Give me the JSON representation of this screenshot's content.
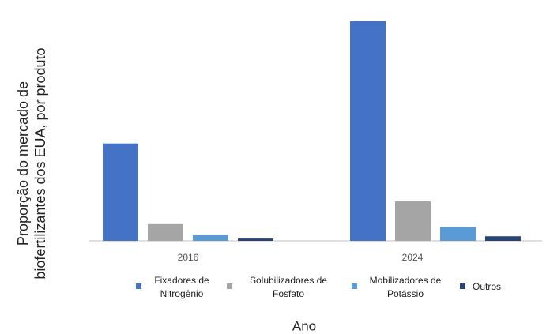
{
  "chart_data": {
    "type": "bar",
    "ylabel": "Proporção do mercado de biofertilizantes dos EUA, por produto",
    "xlabel": "Ano",
    "categories": [
      "2016",
      "2024"
    ],
    "series": [
      {
        "name": "Fixadores de Nitrogênio",
        "color": "#4472c4",
        "values": [
          128,
          289
        ]
      },
      {
        "name": "Solubilizadores de Fosfato",
        "color": "#a5a5a5",
        "values": [
          22,
          52
        ]
      },
      {
        "name": "Mobilizadores de Potássio",
        "color": "#5b9bd5",
        "values": [
          8,
          18
        ]
      },
      {
        "name": "Outros",
        "color": "#264478",
        "values": [
          3,
          6
        ]
      }
    ],
    "ylim": [
      0,
      300
    ],
    "legend": "bottom"
  }
}
